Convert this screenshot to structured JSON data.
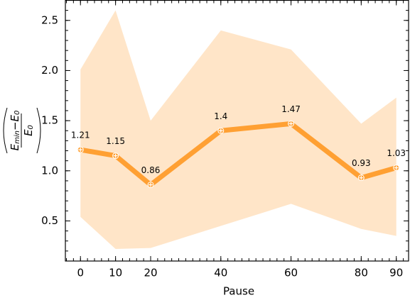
{
  "chart_data": {
    "type": "line",
    "x": [
      0,
      10,
      20,
      40,
      60,
      80,
      90
    ],
    "series": [
      {
        "color": "#ffa033",
        "values": [
          1.21,
          1.15,
          0.86,
          1.4,
          1.47,
          0.93,
          1.03
        ],
        "band_lower": [
          0.54,
          0.22,
          0.23,
          0.45,
          0.67,
          0.42,
          0.35
        ],
        "band_upper": [
          2.01,
          2.6,
          1.5,
          2.4,
          2.21,
          1.47,
          1.73
        ],
        "band_color": "#ffe5c8"
      }
    ],
    "xlim": [
      -4.3,
      93.5
    ],
    "xticks": [
      0,
      10,
      20,
      40,
      60,
      80,
      90
    ],
    "ylim": [
      0.1,
      2.7
    ],
    "yticks": [
      0.5,
      1.0,
      1.5,
      2.0,
      2.5
    ],
    "xlabel": "Pause",
    "ylabel": {
      "numerator": [
        "E",
        "min",
        "−E",
        "0"
      ],
      "denominator": [
        "E",
        "0"
      ]
    }
  }
}
